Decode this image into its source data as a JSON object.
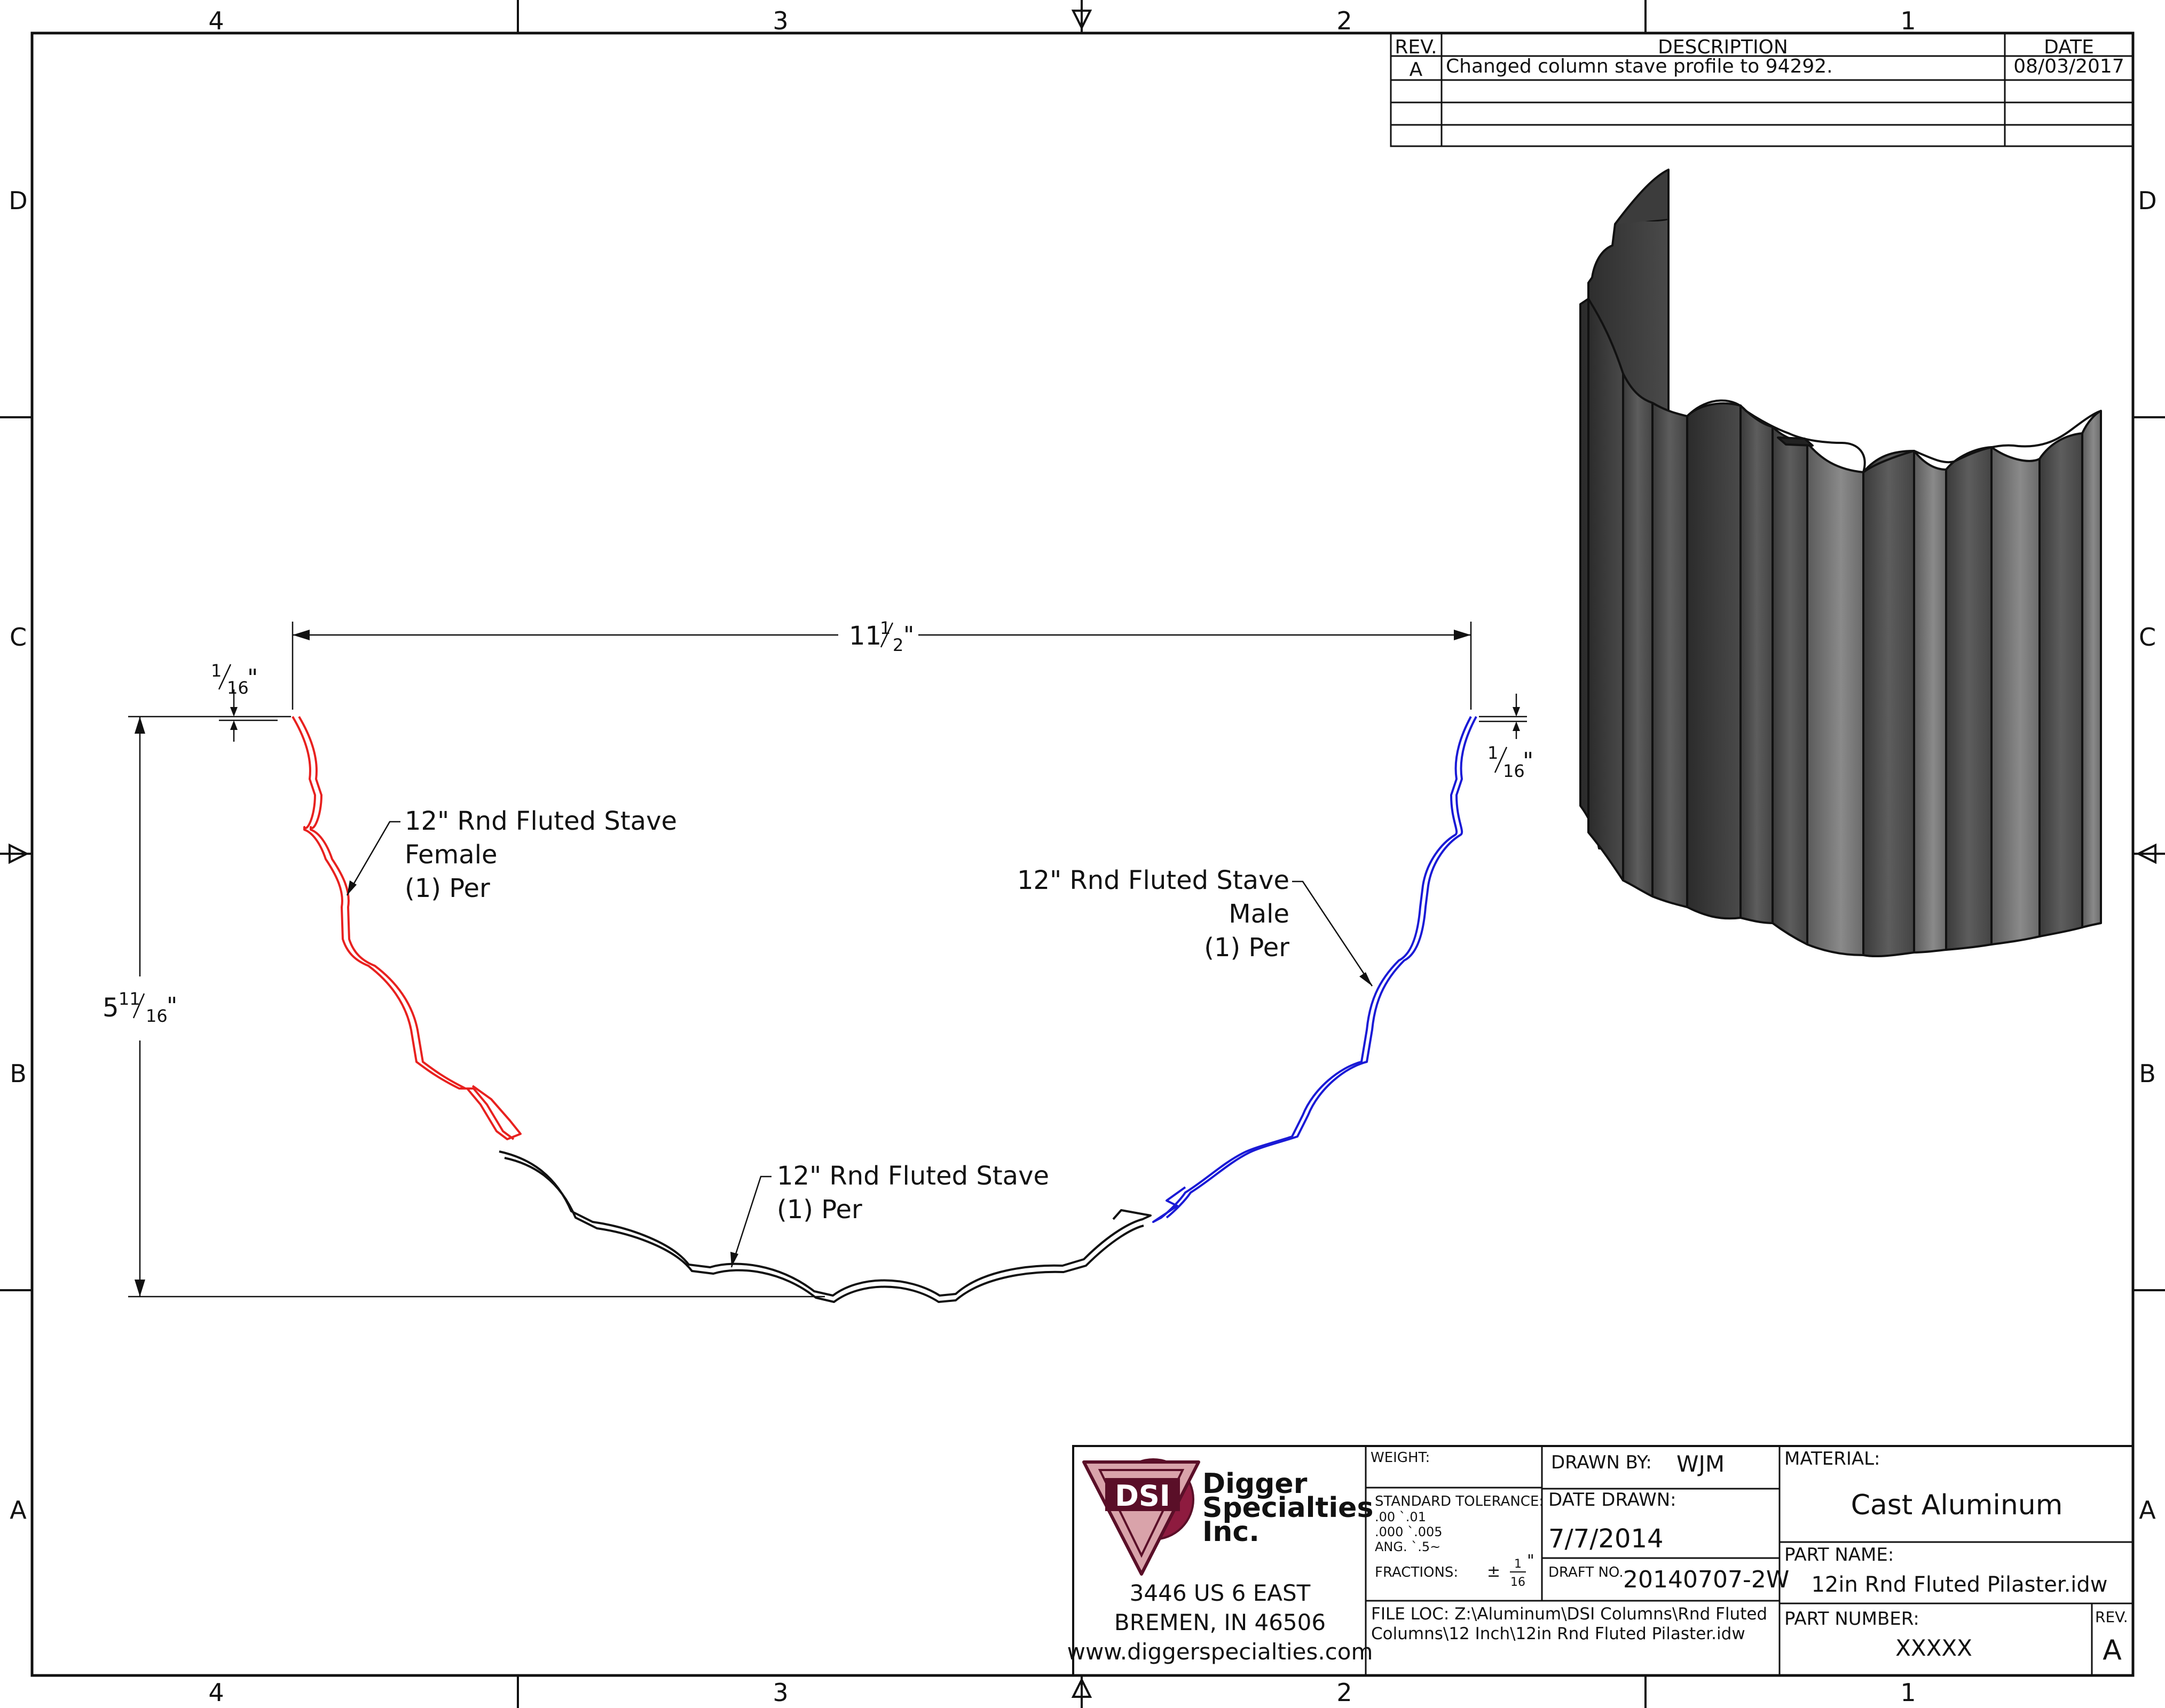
{
  "zones": {
    "columns": [
      "4",
      "3",
      "2",
      "1"
    ],
    "rows": [
      "D",
      "C",
      "B",
      "A"
    ]
  },
  "revision_table": {
    "headers": {
      "rev": "REV.",
      "description": "DESCRIPTION",
      "date": "DATE"
    },
    "rows": [
      {
        "rev": "A",
        "description": "Changed column stave profile to 94292.",
        "date": "08/03/2017"
      }
    ]
  },
  "dimensions": {
    "width": {
      "whole": "11",
      "num": "1",
      "den": "2",
      "unit": "\""
    },
    "height": {
      "whole": "5",
      "num": "11",
      "den": "16",
      "unit": "\""
    },
    "gap_left": {
      "num": "1",
      "den": "16",
      "unit": "\""
    },
    "gap_right": {
      "num": "1",
      "den": "16",
      "unit": "\""
    }
  },
  "callouts": {
    "female": [
      "12\" Rnd Fluted Stave",
      "Female",
      "(1) Per"
    ],
    "male": [
      "12\" Rnd Fluted Stave",
      "Male",
      "(1) Per"
    ],
    "center": [
      "12\" Rnd Fluted Stave",
      "(1) Per"
    ]
  },
  "colors": {
    "female_stave": "#e8211f",
    "male_stave": "#1a1ad6",
    "center_stave": "#111111",
    "logo_maroon": "#8e1b3f",
    "logo_pink": "#d9a3aa"
  },
  "title_block": {
    "logo_text": "DSI",
    "company": [
      "Digger",
      "Specialties",
      "Inc."
    ],
    "address": [
      "3446 US 6 EAST",
      "BREMEN, IN 46506",
      "www.diggerspecialties.com"
    ],
    "weight_label": "WEIGHT:",
    "tolerance_label": "STANDARD TOLERANCE:",
    "tolerance_lines": [
      ".00  `.01",
      ".000 `.005",
      "ANG.  `.5~"
    ],
    "fractions_label": "FRACTIONS:",
    "fractions_pm": "±",
    "fractions_num": "1",
    "fractions_den": "16",
    "fractions_unit": "\"",
    "drawn_by_label": "DRAWN BY:",
    "drawn_by": "WJM",
    "date_drawn_label": "DATE DRAWN:",
    "date_drawn": "7/7/2014",
    "draft_no_label": "DRAFT NO.",
    "draft_no": "20140707-2W",
    "file_loc_lines": [
      "FILE LOC: Z:\\Aluminum\\DSI Columns\\Rnd Fluted",
      "Columns\\12 Inch\\12in Rnd Fluted Pilaster.idw"
    ],
    "material_label": "MATERIAL:",
    "material": "Cast Aluminum",
    "part_name_label": "PART NAME:",
    "part_name": "12in Rnd Fluted Pilaster.idw",
    "part_number_label": "PART NUMBER:",
    "part_number": "XXXXX",
    "rev_label": "REV.",
    "rev": "A"
  }
}
